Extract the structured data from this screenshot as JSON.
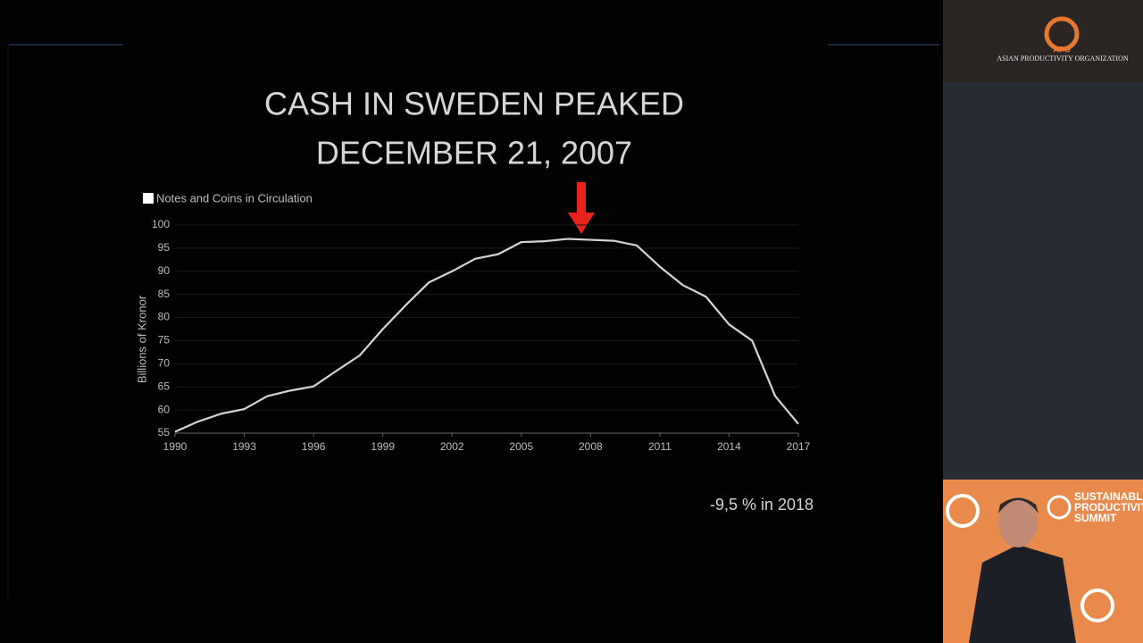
{
  "chart_data": {
    "type": "line",
    "title_lines": [
      "CASH IN SWEDEN PEAKED",
      "DECEMBER 21, 2007"
    ],
    "ylabel": "Billions of Kronor",
    "annotation": "-9,5 % in 2018",
    "x": [
      1990,
      1991,
      1992,
      1993,
      1994,
      1995,
      1996,
      1997,
      1998,
      1999,
      2000,
      2001,
      2002,
      2003,
      2004,
      2005,
      2006,
      2007,
      2008,
      2009,
      2010,
      2011,
      2012,
      2013,
      2014,
      2015,
      2016,
      2017
    ],
    "series": [
      {
        "name": "Notes and Coins in Circulation",
        "color": "#d4d4d4",
        "values": [
          55.3,
          57.5,
          59.2,
          60.2,
          63,
          64.2,
          65.1,
          68.5,
          71.8,
          77.5,
          82.7,
          87.6,
          90,
          92.7,
          93.7,
          96.3,
          96.5,
          97,
          96.8,
          96.6,
          95.6,
          91,
          87,
          84.5,
          78.5,
          75,
          63,
          57
        ]
      }
    ],
    "xlim": [
      1990,
      2017
    ],
    "xticks": [
      1990,
      1993,
      1996,
      1999,
      2002,
      2005,
      2008,
      2011,
      2014,
      2017
    ],
    "ylim": [
      55,
      100
    ],
    "yticks": [
      55,
      60,
      65,
      70,
      75,
      80,
      85,
      90,
      95,
      100
    ],
    "grid": true
  },
  "sidebar": {
    "logo": "APO",
    "organization": "ASIAN PRODUCTIVITY ORGANIZATION",
    "summit_lines": [
      "SUSTAINABLE",
      "PRODUCTIVITY",
      "SUMMIT"
    ]
  }
}
